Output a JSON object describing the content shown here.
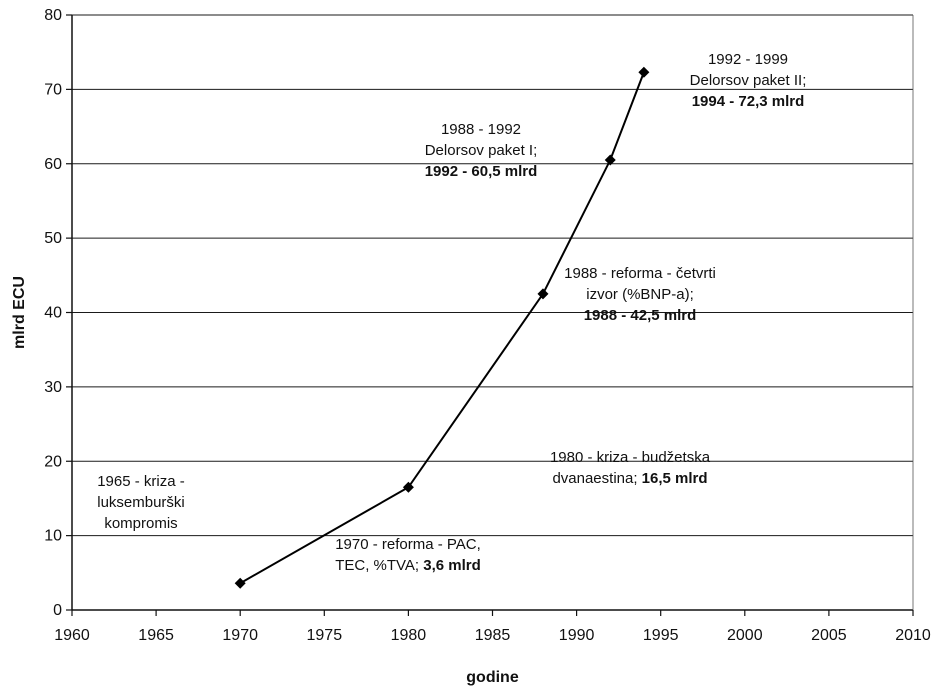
{
  "chart_data": {
    "type": "line",
    "xlabel": "godine",
    "ylabel": "mlrd ECU",
    "xlim": [
      1960,
      2010
    ],
    "ylim": [
      0,
      80
    ],
    "x_ticks": [
      "1960",
      "1965",
      "1970",
      "1975",
      "1980",
      "1985",
      "1990",
      "1995",
      "2000",
      "2005",
      "2010"
    ],
    "y_ticks": [
      "0",
      "10",
      "20",
      "30",
      "40",
      "50",
      "60",
      "70",
      "80"
    ],
    "grid": "horizontal",
    "series": [
      {
        "x": [
          1970,
          1980,
          1988,
          1992,
          1994
        ],
        "y": [
          3.6,
          16.5,
          42.5,
          60.5,
          72.3
        ]
      }
    ],
    "annotations": [
      {
        "lines": [
          [
            {
              "t": "1965 - kriza -",
              "b": false
            }
          ],
          [
            {
              "t": "luksemburški",
              "b": false
            }
          ],
          [
            {
              "t": "kompromis",
              "b": false
            }
          ]
        ]
      },
      {
        "lines": [
          [
            {
              "t": "1970 - reforma - PAC,",
              "b": false
            }
          ],
          [
            {
              "t": "TEC, %TVA; ",
              "b": false
            },
            {
              "t": "3,6 mlrd",
              "b": true
            }
          ]
        ]
      },
      {
        "lines": [
          [
            {
              "t": "1980 - kriza - budžetska",
              "b": false
            }
          ],
          [
            {
              "t": "dvanaestina; ",
              "b": false
            },
            {
              "t": "16,5 mlrd",
              "b": true
            }
          ]
        ]
      },
      {
        "lines": [
          [
            {
              "t": "1988 - reforma - četvrti",
              "b": false
            }
          ],
          [
            {
              "t": "izvor (%BNP-a);",
              "b": false
            }
          ],
          [
            {
              "t": "1988 - 42,5 mlrd",
              "b": true
            }
          ]
        ]
      },
      {
        "lines": [
          [
            {
              "t": "1988 - 1992",
              "b": false
            }
          ],
          [
            {
              "t": "Delorsov paket I;",
              "b": false
            }
          ],
          [
            {
              "t": "1992 - 60,5 mlrd",
              "b": true
            }
          ]
        ]
      },
      {
        "lines": [
          [
            {
              "t": "1992 - 1999",
              "b": false
            }
          ],
          [
            {
              "t": "Delorsov paket II;",
              "b": false
            }
          ],
          [
            {
              "t": "1994 - 72,3 mlrd",
              "b": true
            }
          ]
        ]
      }
    ]
  }
}
